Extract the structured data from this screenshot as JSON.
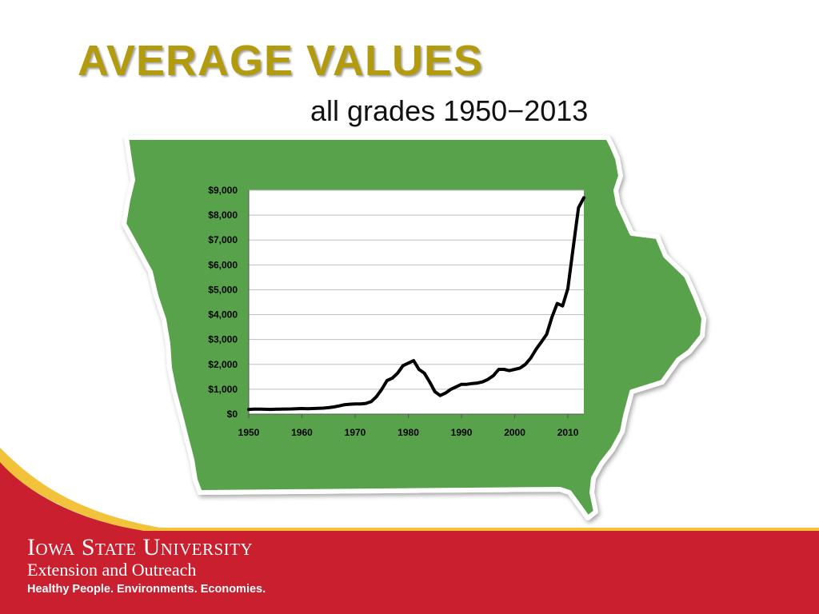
{
  "slide": {
    "title": "AVERAGE VALUES",
    "subtitle": "all grades 1950−2013",
    "colors": {
      "title": "#b39b0f",
      "map_fill": "#58a24b",
      "footer_red": "#c91f2e",
      "accent_yellow": "#f2c23a"
    }
  },
  "footer": {
    "university": "Iowa State University",
    "unit": "Extension and Outreach",
    "tagline": "Healthy People. Environments. Economies."
  },
  "chart_data": {
    "type": "line",
    "title": "",
    "xlabel": "",
    "ylabel": "",
    "xlim": [
      1950,
      2013
    ],
    "ylim": [
      0,
      9000
    ],
    "grid": true,
    "legend": "none",
    "x_ticks": [
      "1950",
      "1960",
      "1970",
      "1980",
      "1990",
      "2000",
      "2010"
    ],
    "y_ticks": [
      "$0",
      "$1,000",
      "$2,000",
      "$3,000",
      "$4,000",
      "$5,000",
      "$6,000",
      "$7,000",
      "$8,000",
      "$9,000"
    ],
    "series": [
      {
        "x": [
          1950,
          1951,
          1952,
          1953,
          1954,
          1955,
          1956,
          1957,
          1958,
          1959,
          1960,
          1961,
          1962,
          1963,
          1964,
          1965,
          1966,
          1967,
          1968,
          1969,
          1970,
          1971,
          1972,
          1973,
          1974,
          1975,
          1976,
          1977,
          1978,
          1979,
          1980,
          1981,
          1982,
          1983,
          1984,
          1985,
          1986,
          1987,
          1988,
          1989,
          1990,
          1991,
          1992,
          1993,
          1994,
          1995,
          1996,
          1997,
          1998,
          1999,
          2000,
          2001,
          2002,
          2003,
          2004,
          2005,
          2006,
          2007,
          2008,
          2009,
          2010,
          2011,
          2012,
          2013
        ],
        "y": [
          190,
          200,
          200,
          195,
          190,
          195,
          200,
          205,
          210,
          220,
          225,
          220,
          225,
          230,
          240,
          260,
          290,
          330,
          380,
          400,
          410,
          410,
          430,
          500,
          700,
          1000,
          1350,
          1450,
          1650,
          1950,
          2050,
          2150,
          1800,
          1650,
          1300,
          900,
          750,
          850,
          1000,
          1100,
          1200,
          1200,
          1230,
          1250,
          1300,
          1400,
          1550,
          1800,
          1800,
          1750,
          1800,
          1850,
          2000,
          2250,
          2600,
          2900,
          3200,
          3900,
          4450,
          4350,
          5050,
          6700,
          8300,
          8700
        ]
      }
    ]
  }
}
